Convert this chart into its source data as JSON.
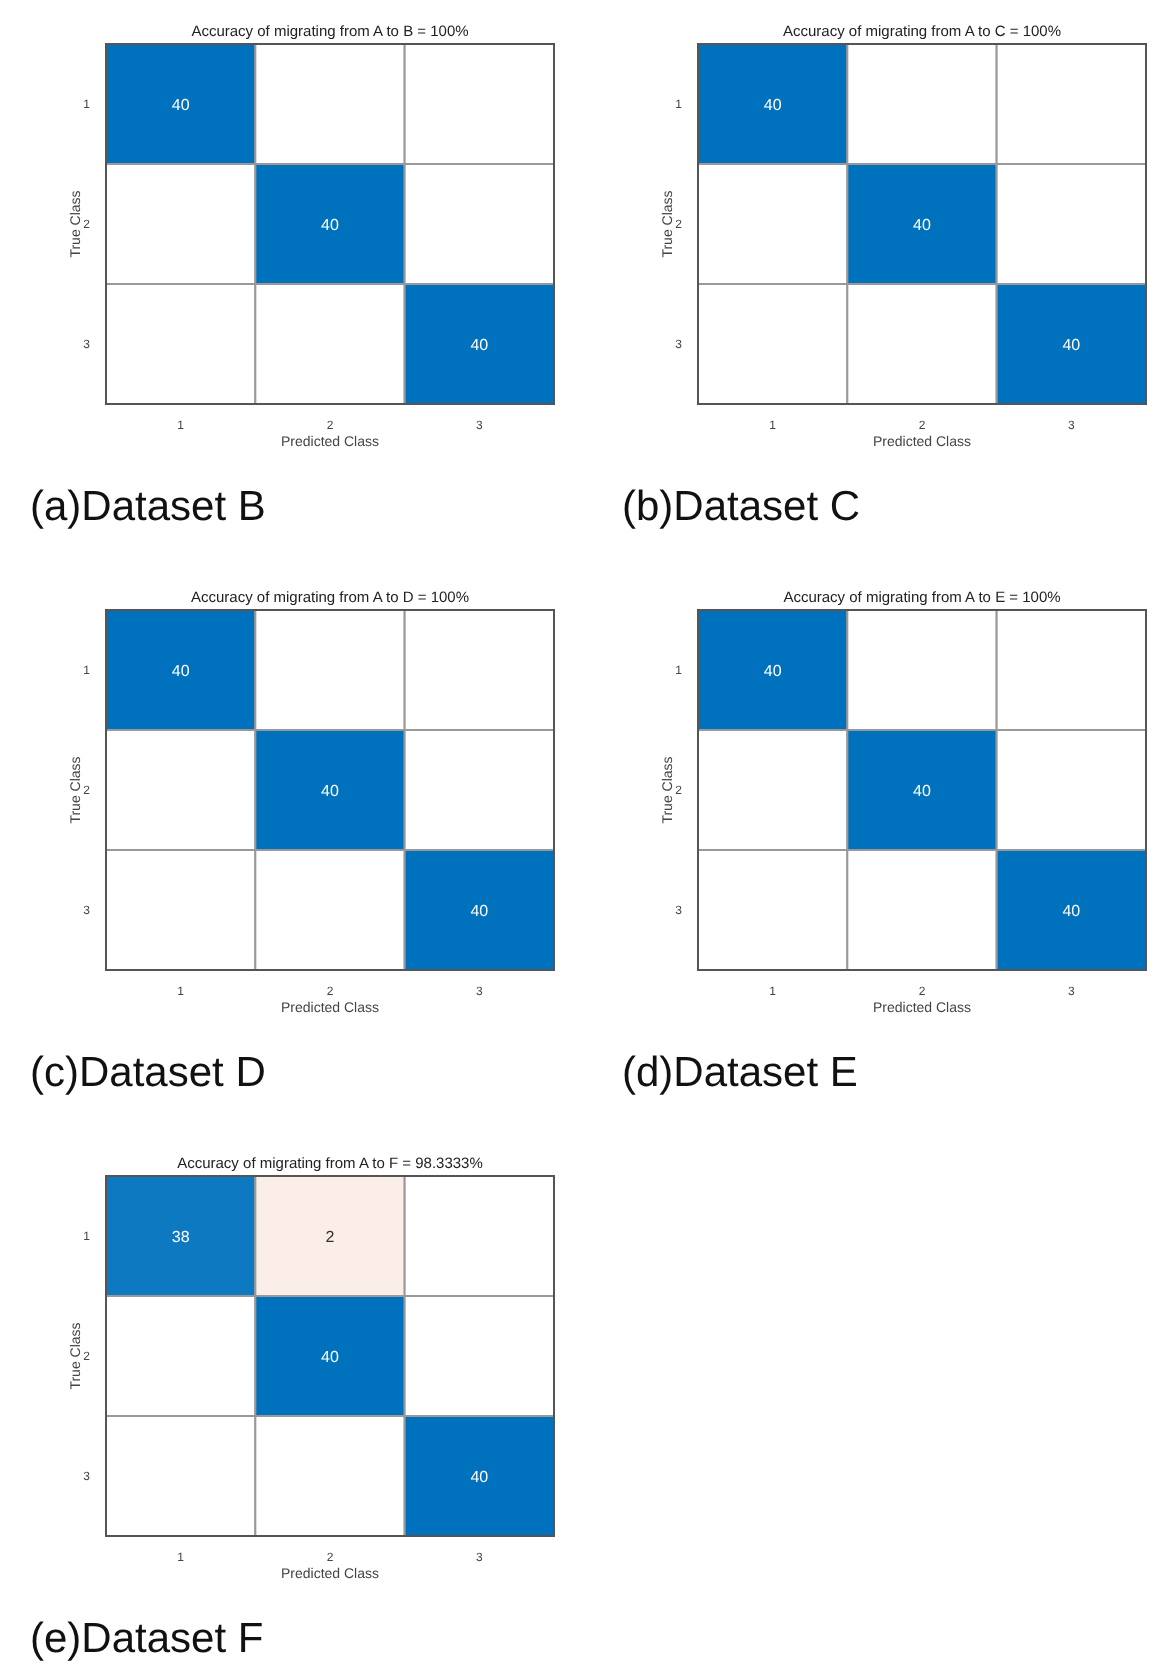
{
  "chart_data": [
    {
      "type": "heatmap",
      "title": "Accuracy of migrating from A to B = 100%",
      "xlabel": "Predicted Class",
      "ylabel": "True Class",
      "categories": [
        "1",
        "2",
        "3"
      ],
      "y_categories": [
        "1",
        "2",
        "3"
      ],
      "cells": [
        [
          40,
          null,
          null
        ],
        [
          null,
          40,
          null
        ],
        [
          null,
          null,
          40
        ]
      ],
      "data_labels": true,
      "annotations": [
        "(a)Dataset B"
      ]
    },
    {
      "type": "heatmap",
      "title": "Accuracy of migrating from A to C = 100%",
      "xlabel": "Predicted Class",
      "ylabel": "True Class",
      "categories": [
        "1",
        "2",
        "3"
      ],
      "y_categories": [
        "1",
        "2",
        "3"
      ],
      "cells": [
        [
          40,
          null,
          null
        ],
        [
          null,
          40,
          null
        ],
        [
          null,
          null,
          40
        ]
      ],
      "data_labels": true,
      "annotations": [
        "(b)Dataset C"
      ]
    },
    {
      "type": "heatmap",
      "title": "Accuracy of migrating from A to D = 100%",
      "xlabel": "Predicted Class",
      "ylabel": "True Class",
      "categories": [
        "1",
        "2",
        "3"
      ],
      "y_categories": [
        "1",
        "2",
        "3"
      ],
      "cells": [
        [
          40,
          null,
          null
        ],
        [
          null,
          40,
          null
        ],
        [
          null,
          null,
          40
        ]
      ],
      "data_labels": true,
      "annotations": [
        "(c)Dataset D"
      ]
    },
    {
      "type": "heatmap",
      "title": "Accuracy of migrating from A to E = 100%",
      "xlabel": "Predicted Class",
      "ylabel": "True Class",
      "categories": [
        "1",
        "2",
        "3"
      ],
      "y_categories": [
        "1",
        "2",
        "3"
      ],
      "cells": [
        [
          40,
          null,
          null
        ],
        [
          null,
          40,
          null
        ],
        [
          null,
          null,
          40
        ]
      ],
      "data_labels": true,
      "annotations": [
        "(d)Dataset E"
      ]
    },
    {
      "type": "heatmap",
      "title": "Accuracy of migrating from A to F = 98.3333%",
      "xlabel": "Predicted Class",
      "ylabel": "True Class",
      "categories": [
        "1",
        "2",
        "3"
      ],
      "y_categories": [
        "1",
        "2",
        "3"
      ],
      "cells": [
        [
          38,
          2,
          null
        ],
        [
          null,
          40,
          null
        ],
        [
          null,
          null,
          40
        ]
      ],
      "data_labels": true,
      "annotations": [
        "(e)Dataset F"
      ]
    }
  ]
}
